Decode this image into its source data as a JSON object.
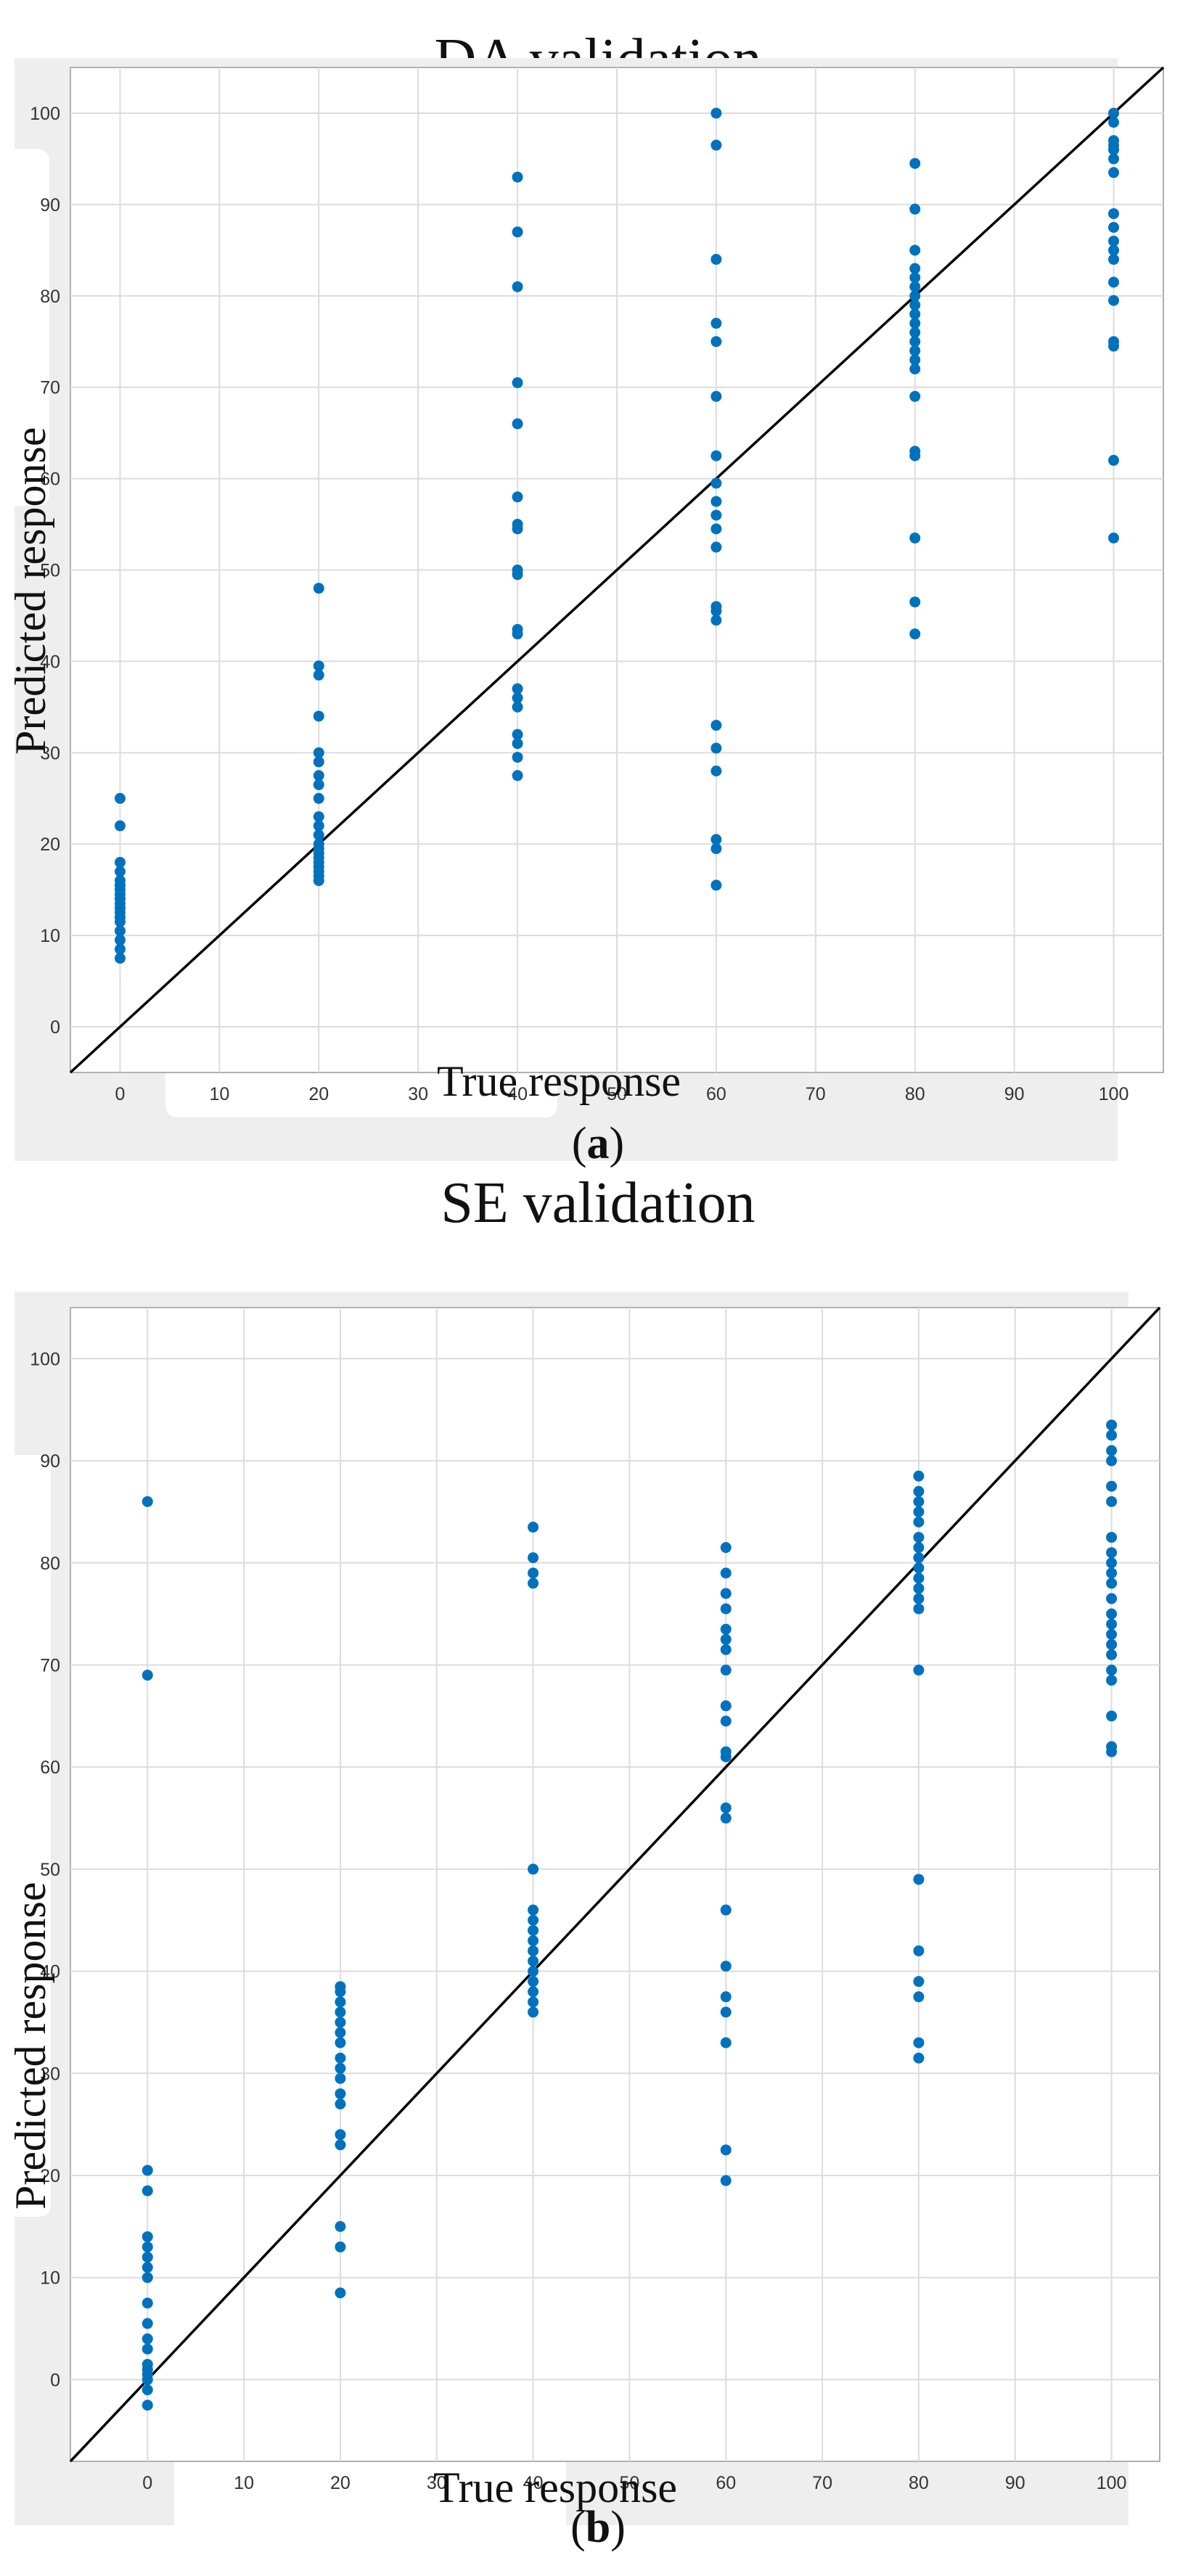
{
  "chart_data": [
    {
      "type": "scatter",
      "title": "DA validation",
      "xlabel": "True response",
      "ylabel": "Predicted response",
      "caption_letter": "a",
      "xlim": [
        -5,
        105
      ],
      "ylim": [
        -5,
        105
      ],
      "xticks": [
        0,
        10,
        20,
        30,
        40,
        50,
        60,
        70,
        80,
        90,
        100
      ],
      "yticks": [
        0,
        10,
        20,
        30,
        40,
        50,
        60,
        70,
        80,
        90,
        100
      ],
      "grid": true,
      "reference_line": "y = x",
      "marker_color": "#0072bd",
      "series": [
        {
          "x": 0,
          "y": [
            7.5,
            8.5,
            9.5,
            10.5,
            11.5,
            12,
            12.5,
            13,
            13.5,
            14,
            14.5,
            15,
            15.5,
            16,
            17,
            18,
            22,
            25
          ]
        },
        {
          "x": 20,
          "y": [
            16,
            16.5,
            17,
            17.5,
            18,
            18.5,
            19,
            19.5,
            20,
            21,
            22,
            23,
            25,
            26.5,
            27.5,
            29,
            30,
            34,
            38.5,
            39.5,
            48
          ]
        },
        {
          "x": 40,
          "y": [
            27.5,
            29.5,
            31,
            32,
            35,
            36,
            37,
            43,
            43.5,
            49.5,
            50,
            54.5,
            55,
            58,
            66,
            70.5,
            81,
            87,
            93
          ]
        },
        {
          "x": 60,
          "y": [
            15.5,
            19.5,
            20.5,
            28,
            30.5,
            33,
            44.5,
            45.5,
            46,
            52.5,
            54.5,
            56,
            57.5,
            59.5,
            62.5,
            69,
            75,
            77,
            84,
            96.5,
            100
          ]
        },
        {
          "x": 80,
          "y": [
            43,
            46.5,
            53.5,
            62.5,
            63,
            69,
            72,
            73,
            74,
            75,
            76,
            77,
            78,
            79,
            80,
            81,
            82,
            83,
            85,
            89.5,
            94.5
          ]
        },
        {
          "x": 100,
          "y": [
            53.5,
            62,
            74.5,
            75,
            79.5,
            81.5,
            84,
            85,
            86,
            87.5,
            89,
            93.5,
            95,
            96,
            96.5,
            97,
            99,
            100
          ]
        }
      ]
    },
    {
      "type": "scatter",
      "title": "SE validation",
      "xlabel": "True response",
      "ylabel": "Predicted response",
      "caption_letter": "b",
      "xlim": [
        -8,
        105
      ],
      "ylim": [
        -8,
        105
      ],
      "xticks": [
        0,
        10,
        20,
        30,
        40,
        50,
        60,
        70,
        80,
        90,
        100
      ],
      "yticks": [
        0,
        10,
        20,
        30,
        40,
        50,
        60,
        70,
        80,
        90,
        100
      ],
      "grid": true,
      "reference_line": "y = x",
      "marker_color": "#0072bd",
      "series": [
        {
          "x": 0,
          "y": [
            -2.5,
            -1,
            0,
            0.5,
            1,
            1.5,
            3,
            4,
            5.5,
            7.5,
            10,
            11,
            12,
            13,
            14,
            18.5,
            20.5,
            69,
            86
          ]
        },
        {
          "x": 20,
          "y": [
            8.5,
            13,
            15,
            23,
            24,
            27,
            28,
            29.5,
            30.5,
            31.5,
            33,
            34,
            35,
            36,
            37,
            38,
            38.5
          ]
        },
        {
          "x": 40,
          "y": [
            36,
            37,
            38,
            39,
            40,
            41,
            42,
            43,
            44,
            45,
            46,
            50,
            78,
            79,
            80.5,
            83.5
          ]
        },
        {
          "x": 60,
          "y": [
            19.5,
            22.5,
            33,
            36,
            37.5,
            40.5,
            46,
            55,
            56,
            61,
            61.5,
            64.5,
            66,
            69.5,
            71.5,
            72.5,
            73.5,
            75.5,
            77,
            79,
            81.5
          ]
        },
        {
          "x": 80,
          "y": [
            31.5,
            33,
            37.5,
            39,
            42,
            49,
            69.5,
            75.5,
            76.5,
            77.5,
            78.5,
            79.5,
            80.5,
            81.5,
            82.5,
            84,
            85,
            86,
            87,
            88.5
          ]
        },
        {
          "x": 100,
          "y": [
            61.5,
            62,
            65,
            68.5,
            69.5,
            71,
            72,
            73,
            74,
            75,
            76.5,
            78,
            79,
            80,
            81,
            82.5,
            86,
            87.5,
            90,
            91,
            92.5,
            93.5
          ]
        }
      ]
    }
  ]
}
